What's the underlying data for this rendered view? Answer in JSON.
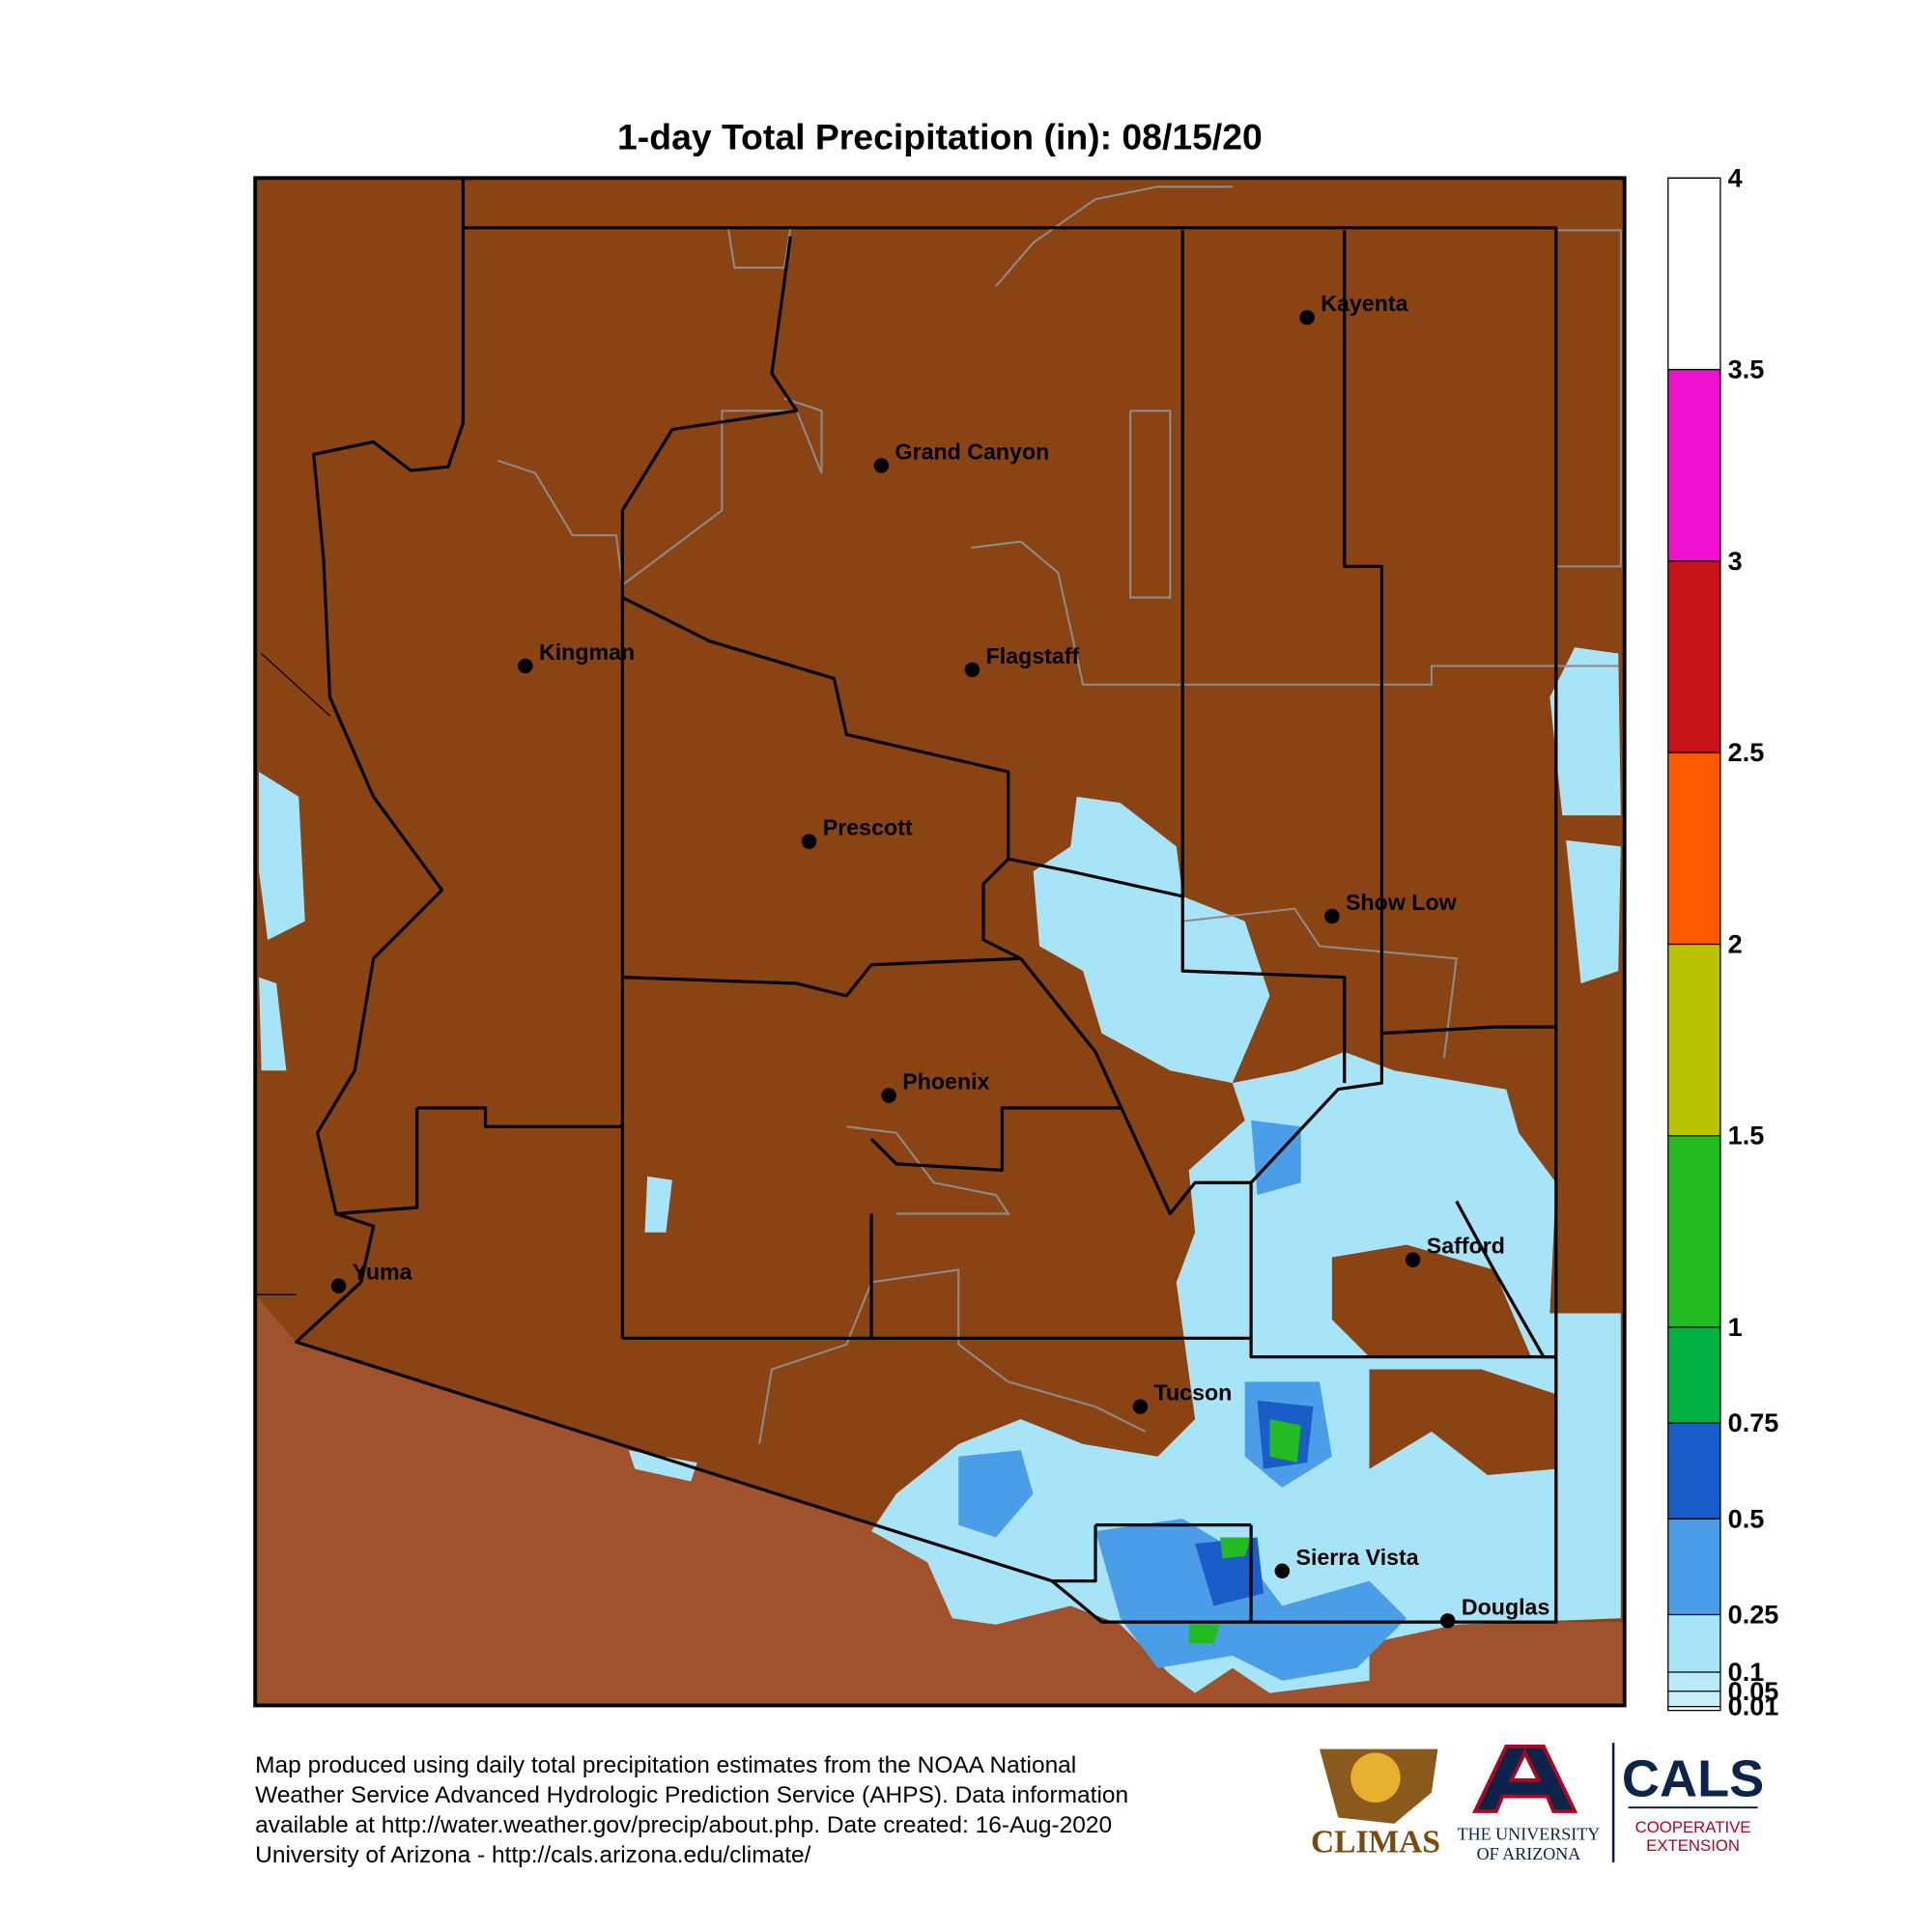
{
  "title": "1-day Total Precipitation (in): 08/15/20",
  "cities": [
    "Kayenta",
    "Grand Canyon",
    "Kingman",
    "Flagstaff",
    "Prescott",
    "Show Low",
    "Phoenix",
    "Safford",
    "Yuma",
    "Tucson",
    "Sierra Vista",
    "Douglas"
  ],
  "colorbar": {
    "lim": [
      0,
      4
    ],
    "ticks": [
      0.01,
      0.05,
      0.1,
      0.25,
      0.5,
      0.75,
      1,
      1.5,
      2,
      2.5,
      3,
      3.5,
      4
    ],
    "colors": [
      "#c8f0fb",
      "#b8eafa",
      "#a8e4f8",
      "#4a9ee8",
      "#1a5cc8",
      "#00b040",
      "#22bb22",
      "#b8c400",
      "#ff5a00",
      "#c81418",
      "#ee10cc",
      "#ffffff"
    ]
  },
  "footer": [
    "Map produced using daily total precipitation estimates from the NOAA National",
    "Weather Service Advanced Hydrologic Prediction Service (AHPS). Data information",
    "available at http://water.weather.gov/precip/about.php. Date created: 16-Aug-2020",
    "University of Arizona - http://cals.arizona.edu/climate/"
  ],
  "logos": {
    "climas": "CLIMAS",
    "ua_line1": "THE UNIVERSITY",
    "ua_line2": "OF ARIZONA",
    "cals": "CALS",
    "cals_line1": "COOPERATIVE",
    "cals_line2": "EXTENSION"
  }
}
